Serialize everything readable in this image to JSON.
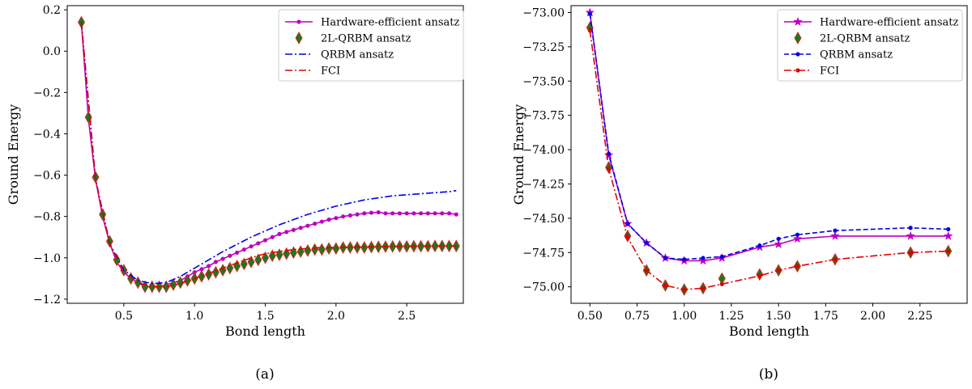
{
  "chart_data": [
    {
      "type": "line",
      "caption": "(a)",
      "xlabel": "Bond length",
      "ylabel": "Ground Energy",
      "xlim": [
        0.1,
        2.9
      ],
      "ylim": [
        -1.22,
        0.22
      ],
      "xticks": [
        0.5,
        1.0,
        1.5,
        2.0,
        2.5
      ],
      "xtick_labels": [
        "0.5",
        "1.0",
        "1.5",
        "2.0",
        "2.5"
      ],
      "yticks": [
        -1.2,
        -1.0,
        -0.8,
        -0.6,
        -0.4,
        -0.2,
        0.0,
        0.2
      ],
      "ytick_labels": [
        "−1.2",
        "−1.0",
        "−0.8",
        "−0.6",
        "−0.4",
        "−0.2",
        "0.0",
        "0.2"
      ],
      "legend_position": "top-right",
      "grid": false,
      "series": [
        {
          "name": "Hardware-efficient ansatz",
          "color": "#bf00bf",
          "style": "solid",
          "marker": "dot",
          "x": [
            0.2,
            0.25,
            0.3,
            0.35,
            0.4,
            0.45,
            0.5,
            0.55,
            0.6,
            0.65,
            0.7,
            0.75,
            0.8,
            0.85,
            0.9,
            0.95,
            1.0,
            1.05,
            1.1,
            1.15,
            1.2,
            1.25,
            1.3,
            1.35,
            1.4,
            1.45,
            1.5,
            1.55,
            1.6,
            1.65,
            1.7,
            1.75,
            1.8,
            1.85,
            1.9,
            1.95,
            2.0,
            2.05,
            2.1,
            2.15,
            2.2,
            2.25,
            2.3,
            2.35,
            2.4,
            2.45,
            2.5,
            2.55,
            2.6,
            2.65,
            2.7,
            2.75,
            2.8,
            2.85
          ],
          "y": [
            0.14,
            -0.33,
            -0.62,
            -0.8,
            -0.93,
            -1.02,
            -1.07,
            -1.1,
            -1.12,
            -1.14,
            -1.14,
            -1.14,
            -1.13,
            -1.12,
            -1.11,
            -1.09,
            -1.07,
            -1.055,
            -1.04,
            -1.02,
            -1.005,
            -0.99,
            -0.975,
            -0.96,
            -0.945,
            -0.93,
            -0.915,
            -0.9,
            -0.885,
            -0.875,
            -0.865,
            -0.855,
            -0.845,
            -0.835,
            -0.825,
            -0.815,
            -0.808,
            -0.8,
            -0.795,
            -0.79,
            -0.785,
            -0.782,
            -0.78,
            -0.785,
            -0.785,
            -0.785,
            -0.785,
            -0.785,
            -0.785,
            -0.785,
            -0.785,
            -0.785,
            -0.785,
            -0.79
          ]
        },
        {
          "name": "2L-QRBM ansatz",
          "color": "#1a7a1a",
          "style": "none",
          "marker": "diamond",
          "x": [
            0.2,
            0.25,
            0.3,
            0.35,
            0.4,
            0.45,
            0.5,
            0.55,
            0.6,
            0.65,
            0.7,
            0.75,
            0.8,
            0.85,
            0.9,
            0.95,
            1.0,
            1.05,
            1.1,
            1.15,
            1.2,
            1.25,
            1.3,
            1.35,
            1.4,
            1.45,
            1.5,
            1.55,
            1.6,
            1.65,
            1.7,
            1.75,
            1.8,
            1.85,
            1.9,
            1.95,
            2.0,
            2.05,
            2.1,
            2.15,
            2.2,
            2.25,
            2.3,
            2.35,
            2.4,
            2.45,
            2.5,
            2.55,
            2.6,
            2.65,
            2.7,
            2.75,
            2.8,
            2.85
          ],
          "y": [
            0.14,
            -0.32,
            -0.61,
            -0.79,
            -0.92,
            -1.01,
            -1.06,
            -1.1,
            -1.12,
            -1.14,
            -1.14,
            -1.14,
            -1.14,
            -1.13,
            -1.12,
            -1.11,
            -1.1,
            -1.09,
            -1.08,
            -1.07,
            -1.06,
            -1.05,
            -1.04,
            -1.03,
            -1.02,
            -1.01,
            -1.0,
            -0.99,
            -0.985,
            -0.98,
            -0.975,
            -0.97,
            -0.965,
            -0.96,
            -0.96,
            -0.955,
            -0.955,
            -0.95,
            -0.95,
            -0.95,
            -0.95,
            -0.948,
            -0.947,
            -0.946,
            -0.945,
            -0.945,
            -0.945,
            -0.944,
            -0.944,
            -0.944,
            -0.943,
            -0.943,
            -0.943,
            -0.943
          ]
        },
        {
          "name": "QRBM ansatz",
          "color": "#0000ee",
          "style": "dashdot",
          "marker": "none",
          "x": [
            0.2,
            0.3,
            0.4,
            0.5,
            0.6,
            0.7,
            0.8,
            0.9,
            1.0,
            1.1,
            1.2,
            1.3,
            1.4,
            1.5,
            1.6,
            1.7,
            1.8,
            1.9,
            2.0,
            2.1,
            2.2,
            2.3,
            2.4,
            2.5,
            2.6,
            2.7,
            2.8,
            2.85
          ],
          "y": [
            0.14,
            -0.62,
            -0.93,
            -1.06,
            -1.11,
            -1.125,
            -1.12,
            -1.09,
            -1.05,
            -1.01,
            -0.97,
            -0.935,
            -0.9,
            -0.87,
            -0.84,
            -0.815,
            -0.79,
            -0.77,
            -0.75,
            -0.735,
            -0.72,
            -0.71,
            -0.7,
            -0.695,
            -0.69,
            -0.685,
            -0.68,
            -0.675
          ]
        },
        {
          "name": "FCI",
          "color": "#e00000",
          "style": "dashdot",
          "marker": "none",
          "x": [
            0.2,
            0.3,
            0.4,
            0.5,
            0.6,
            0.7,
            0.8,
            0.9,
            1.0,
            1.1,
            1.2,
            1.3,
            1.4,
            1.5,
            1.6,
            1.7,
            1.8,
            1.9,
            2.0,
            2.1,
            2.2,
            2.3,
            2.4,
            2.5,
            2.6,
            2.7,
            2.8,
            2.85
          ],
          "y": [
            0.14,
            -0.62,
            -0.93,
            -1.07,
            -1.12,
            -1.14,
            -1.14,
            -1.125,
            -1.1,
            -1.075,
            -1.05,
            -1.025,
            -1.0,
            -0.98,
            -0.97,
            -0.96,
            -0.955,
            -0.95,
            -0.95,
            -0.948,
            -0.947,
            -0.946,
            -0.945,
            -0.944,
            -0.944,
            -0.943,
            -0.943,
            -0.943
          ]
        }
      ]
    },
    {
      "type": "line",
      "caption": "(b)",
      "xlabel": "Bond length",
      "ylabel": "Ground Energy",
      "xlim": [
        0.4,
        2.5
      ],
      "ylim": [
        -75.12,
        -72.95
      ],
      "xticks": [
        0.5,
        0.75,
        1.0,
        1.25,
        1.5,
        1.75,
        2.0,
        2.25
      ],
      "xtick_labels": [
        "0.50",
        "0.75",
        "1.00",
        "1.25",
        "1.50",
        "1.75",
        "2.00",
        "2.25"
      ],
      "yticks": [
        -75.0,
        -74.75,
        -74.5,
        -74.25,
        -74.0,
        -73.75,
        -73.5,
        -73.25,
        -73.0
      ],
      "ytick_labels": [
        "−75.00",
        "−74.75",
        "−74.50",
        "−74.25",
        "−74.00",
        "−73.75",
        "−73.50",
        "−73.25",
        "−73.00"
      ],
      "legend_position": "top-right",
      "grid": false,
      "series": [
        {
          "name": "Hardware-efficient ansatz",
          "color": "#bf00bf",
          "style": "solid",
          "marker": "star",
          "x": [
            0.5,
            0.6,
            0.7,
            0.8,
            0.9,
            1.0,
            1.1,
            1.2,
            1.4,
            1.5,
            1.6,
            1.8,
            2.2,
            2.4
          ],
          "y": [
            -73.0,
            -74.04,
            -74.54,
            -74.68,
            -74.79,
            -74.81,
            -74.81,
            -74.79,
            -74.71,
            -74.69,
            -74.65,
            -74.63,
            -74.63,
            -74.63
          ]
        },
        {
          "name": "2L-QRBM ansatz",
          "color": "#1a7a1a",
          "style": "none",
          "marker": "diamond",
          "x": [
            0.5,
            0.6,
            0.7,
            0.8,
            0.9,
            1.0,
            1.1,
            1.2,
            1.4,
            1.5,
            1.6,
            1.8,
            2.2,
            2.4
          ],
          "y": [
            -73.11,
            -74.13,
            -74.63,
            -74.88,
            -74.99,
            -75.02,
            -75.01,
            -74.94,
            -74.91,
            -74.88,
            -74.85,
            -74.8,
            -74.75,
            -74.74
          ]
        },
        {
          "name": "QRBM ansatz",
          "color": "#0000ee",
          "style": "dashed",
          "marker": "dot",
          "x": [
            0.5,
            0.6,
            0.7,
            0.8,
            0.9,
            1.0,
            1.1,
            1.2,
            1.4,
            1.5,
            1.6,
            1.8,
            2.2,
            2.4
          ],
          "y": [
            -73.01,
            -74.03,
            -74.54,
            -74.68,
            -74.79,
            -74.8,
            -74.79,
            -74.78,
            -74.7,
            -74.65,
            -74.62,
            -74.59,
            -74.57,
            -74.58
          ]
        },
        {
          "name": "FCI",
          "color": "#e00000",
          "style": "dashdot",
          "marker": "dot",
          "x": [
            0.5,
            0.6,
            0.7,
            0.8,
            0.9,
            1.0,
            1.1,
            1.2,
            1.4,
            1.5,
            1.6,
            1.8,
            2.2,
            2.4
          ],
          "y": [
            -73.13,
            -74.14,
            -74.64,
            -74.88,
            -74.99,
            -75.02,
            -75.01,
            -74.98,
            -74.92,
            -74.88,
            -74.85,
            -74.8,
            -74.75,
            -74.74
          ]
        }
      ]
    }
  ]
}
